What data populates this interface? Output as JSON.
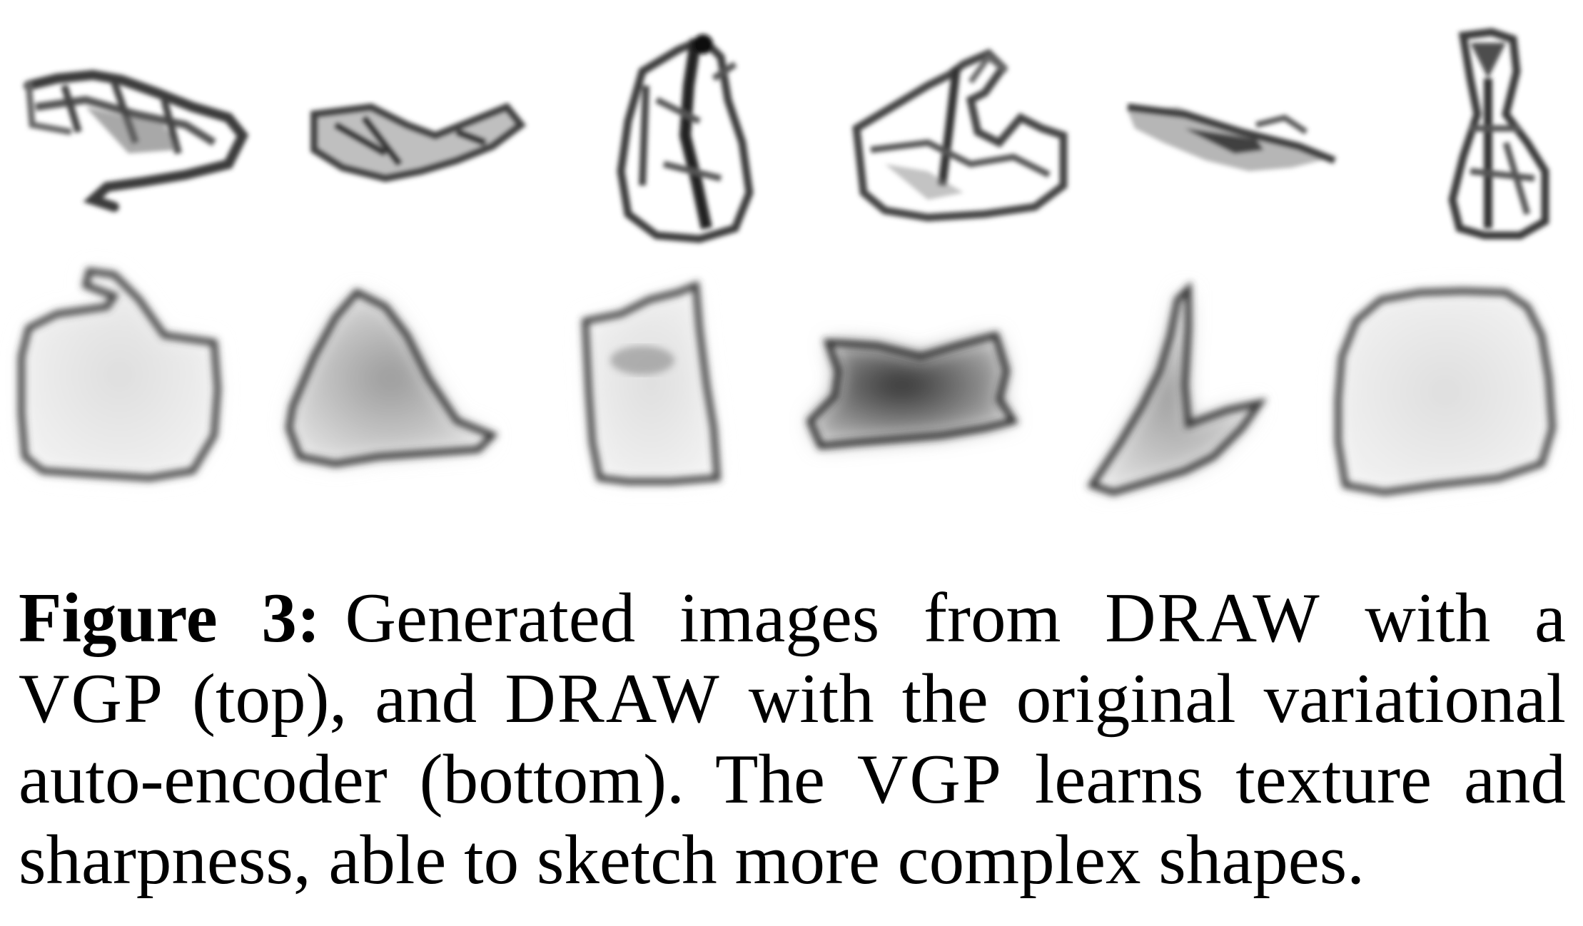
{
  "figure": {
    "label": "Figure 3:",
    "caption_parts": [
      "Generated images from ",
      "DRAW",
      " with a ",
      "VGP",
      " (top), and ",
      "DRAW",
      " with the original variational auto-encoder (bottom). The ",
      "VGP",
      " learns texture and sharpness, able to sketch more complex shapes."
    ],
    "rows": [
      {
        "row": "top",
        "model": "VGP",
        "count": 6,
        "style": "textured sketch"
      },
      {
        "row": "bottom",
        "model": "variational auto-encoder",
        "count": 6,
        "style": "blurry filled shape"
      }
    ]
  }
}
